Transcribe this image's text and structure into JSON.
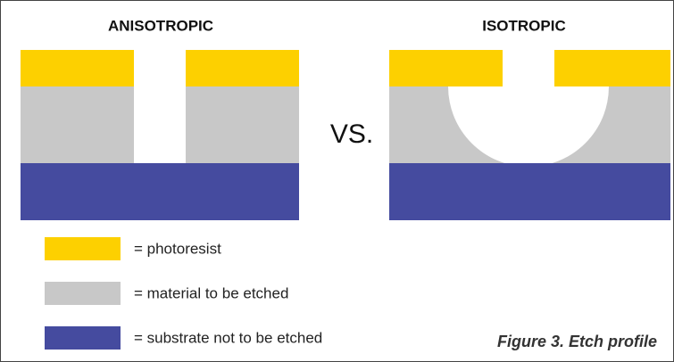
{
  "left_panel": {
    "title": "ANISOTROPIC"
  },
  "right_panel": {
    "title": "ISOTROPIC"
  },
  "separator": "VS.",
  "legend": [
    {
      "label": "= photoresist"
    },
    {
      "label": "= material to be etched"
    },
    {
      "label": "= substrate not to be etched"
    }
  ],
  "caption": "Figure 3. Etch profile"
}
